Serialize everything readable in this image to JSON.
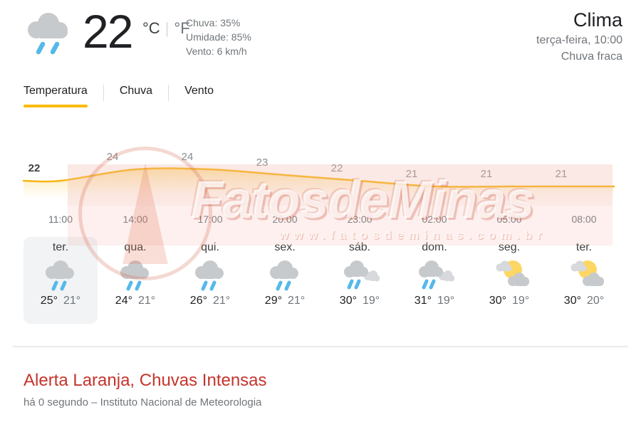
{
  "colors": {
    "accent_yellow": "#fbbc04",
    "chart_line": "#f8b513",
    "rain_blue": "#55b9ea",
    "cloud_gray": "#c7cacd",
    "sun_yellow": "#fdd663",
    "alert_red": "#c5342b",
    "text_dark": "#202124",
    "text_gray": "#70757a",
    "selected_day_bg": "#f1f3f4"
  },
  "header": {
    "temp_now": "22",
    "unit_celsius": "°C",
    "unit_separator": "|",
    "unit_fahrenheit": "°F",
    "condition_icon": "rain-icon",
    "stats": [
      "Chuva: 35%",
      "Umidade: 85%",
      "Vento: 6 km/h"
    ]
  },
  "panel": {
    "title": "Clima",
    "datetime": "terça-feira, 10:00",
    "condition": "Chuva fraca"
  },
  "tabs": [
    {
      "label": "Temperatura",
      "active": true
    },
    {
      "label": "Chuva",
      "active": false
    },
    {
      "label": "Vento",
      "active": false
    }
  ],
  "chart_data": {
    "type": "area",
    "x": [
      "11:00",
      "14:00",
      "17:00",
      "20:00",
      "23:00",
      "02:00",
      "05:00",
      "08:00"
    ],
    "series": [
      {
        "name": "Temperatura (°C)",
        "values": [
          22,
          24,
          24,
          23,
          22,
          21,
          21,
          21
        ]
      }
    ],
    "point_labels": [
      "22",
      "24",
      "24",
      "23",
      "22",
      "21",
      "21",
      "21"
    ],
    "ylim": [
      20,
      25
    ],
    "grid": false,
    "legend": false,
    "line_color": "#f8b513"
  },
  "forecast": [
    {
      "day": "ter.",
      "icon": "rain",
      "high": "25°",
      "low": "21°",
      "selected": true
    },
    {
      "day": "qua.",
      "icon": "rain",
      "high": "24°",
      "low": "21°",
      "selected": false
    },
    {
      "day": "qui.",
      "icon": "rain",
      "high": "26°",
      "low": "21°",
      "selected": false
    },
    {
      "day": "sex.",
      "icon": "rain",
      "high": "29°",
      "low": "21°",
      "selected": false
    },
    {
      "day": "sáb.",
      "icon": "scattered-showers",
      "high": "30°",
      "low": "19°",
      "selected": false
    },
    {
      "day": "dom.",
      "icon": "scattered-showers",
      "high": "31°",
      "low": "19°",
      "selected": false
    },
    {
      "day": "seg.",
      "icon": "partly-cloudy",
      "high": "30°",
      "low": "19°",
      "selected": false
    },
    {
      "day": "ter.",
      "icon": "partly-cloudy",
      "high": "30°",
      "low": "20°",
      "selected": false
    }
  ],
  "watermark": {
    "text": "FatosdeMinas",
    "url": "www.fatosdeminas.com.br"
  },
  "alert": {
    "title": "Alerta Laranja, Chuvas Intensas",
    "source": "há 0 segundo – Instituto Nacional de Meteorologia"
  }
}
